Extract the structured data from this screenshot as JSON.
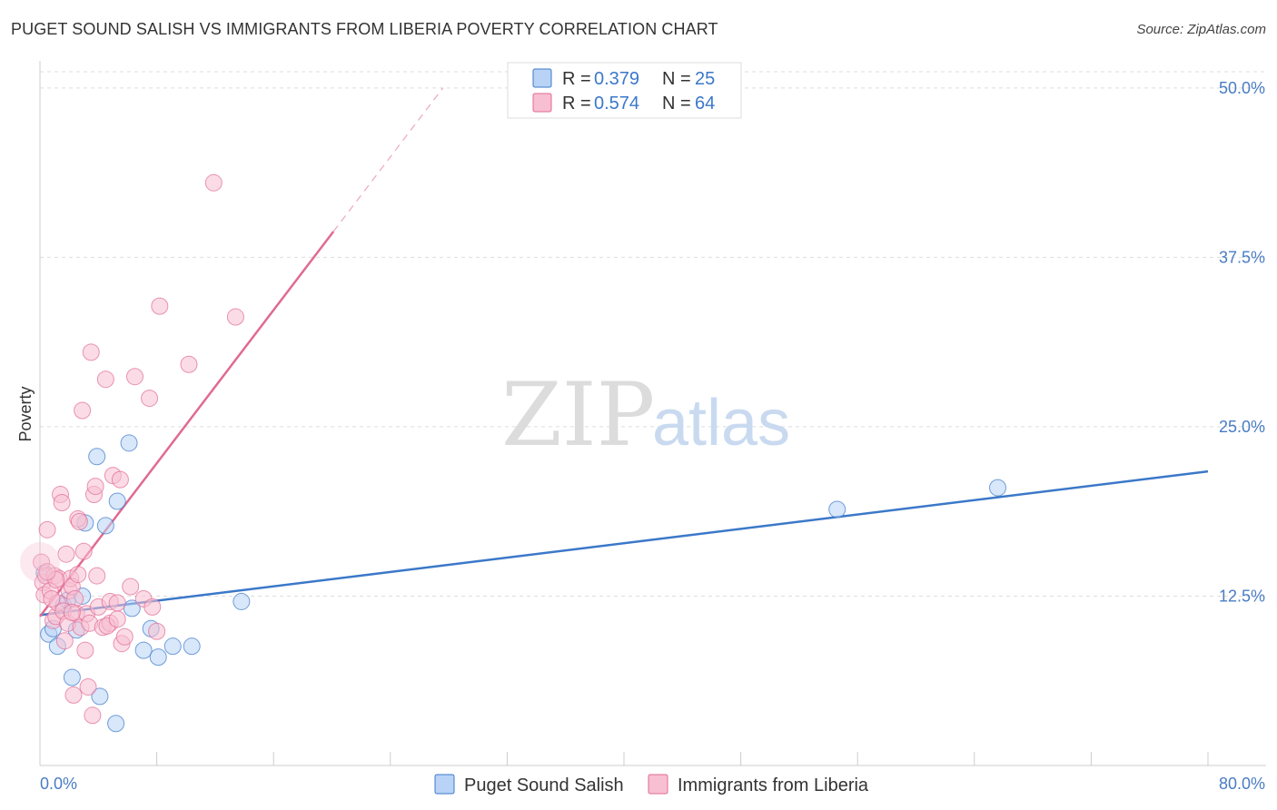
{
  "title": "PUGET SOUND SALISH VS IMMIGRANTS FROM LIBERIA POVERTY CORRELATION CHART",
  "source": "Source: ZipAtlas.com",
  "watermark": {
    "zip": "ZIP",
    "atlas": "atlas"
  },
  "colors": {
    "blue": "#3b78c9",
    "blue_fill": "#b8d3f5",
    "pink": "#e06a93",
    "pink_fill": "#f7bfd1",
    "tick": "#4a7cc4",
    "grid": "#dddddd"
  },
  "legend": {
    "r_label": "R =",
    "n_label": "N =",
    "series": [
      {
        "r": "0.379",
        "n": "25"
      },
      {
        "r": "0.574",
        "n": "64"
      }
    ]
  },
  "chart_data": {
    "type": "scatter",
    "title": "PUGET SOUND SALISH VS IMMIGRANTS FROM LIBERIA POVERTY CORRELATION CHART",
    "xlabel": "",
    "ylabel": "Poverty",
    "xlim": [
      0,
      80
    ],
    "ylim": [
      0,
      52
    ],
    "x_tick_labels": [
      "0.0%",
      "80.0%"
    ],
    "y_ticks": [
      12.5,
      25.0,
      37.5,
      50.0
    ],
    "y_tick_labels": [
      "12.5%",
      "25.0%",
      "37.5%",
      "50.0%"
    ],
    "grid": true,
    "legend_position": "bottom",
    "series": [
      {
        "name": "Puget Sound Salish",
        "color": "#3b78c9",
        "r": 0.379,
        "n": 25,
        "trend": {
          "x": [
            0,
            80
          ],
          "y": [
            11.1,
            21.7
          ],
          "solid_to_x": 80
        },
        "points": [
          [
            0.3,
            14.2
          ],
          [
            0.6,
            9.7
          ],
          [
            0.9,
            10.1
          ],
          [
            1.2,
            8.8
          ],
          [
            1.6,
            11.8
          ],
          [
            1.9,
            12.2
          ],
          [
            2.2,
            6.5
          ],
          [
            2.5,
            10.0
          ],
          [
            2.9,
            12.5
          ],
          [
            3.1,
            17.9
          ],
          [
            3.9,
            22.8
          ],
          [
            4.1,
            5.1
          ],
          [
            4.5,
            17.7
          ],
          [
            5.2,
            3.1
          ],
          [
            5.3,
            19.5
          ],
          [
            6.1,
            23.8
          ],
          [
            6.3,
            11.6
          ],
          [
            7.1,
            8.5
          ],
          [
            7.6,
            10.1
          ],
          [
            8.1,
            8.0
          ],
          [
            9.1,
            8.8
          ],
          [
            10.4,
            8.8
          ],
          [
            13.8,
            12.1
          ],
          [
            54.6,
            18.9
          ],
          [
            65.6,
            20.5
          ]
        ]
      },
      {
        "name": "Immigrants from Liberia",
        "color": "#e06a93",
        "r": 0.574,
        "n": 64,
        "trend": {
          "x": [
            0,
            27.6
          ],
          "y": [
            11.0,
            50.0
          ],
          "solid_to_x": 20.1
        },
        "points": [
          [
            0.1,
            15.0
          ],
          [
            0.2,
            13.5
          ],
          [
            0.3,
            12.6
          ],
          [
            0.4,
            14.0
          ],
          [
            0.5,
            17.4
          ],
          [
            0.7,
            12.9
          ],
          [
            0.9,
            10.7
          ],
          [
            1.0,
            14.0
          ],
          [
            1.1,
            11.0
          ],
          [
            1.2,
            12.0
          ],
          [
            1.3,
            13.8
          ],
          [
            1.4,
            20.0
          ],
          [
            1.5,
            19.4
          ],
          [
            1.6,
            11.4
          ],
          [
            1.7,
            9.2
          ],
          [
            1.8,
            15.6
          ],
          [
            1.9,
            10.5
          ],
          [
            2.0,
            12.9
          ],
          [
            2.1,
            13.8
          ],
          [
            2.2,
            13.2
          ],
          [
            2.3,
            5.2
          ],
          [
            2.4,
            12.3
          ],
          [
            2.5,
            11.2
          ],
          [
            2.6,
            14.1
          ],
          [
            2.6,
            18.2
          ],
          [
            2.7,
            18.0
          ],
          [
            2.8,
            10.2
          ],
          [
            2.9,
            26.2
          ],
          [
            3.0,
            15.8
          ],
          [
            3.1,
            8.5
          ],
          [
            3.2,
            11.2
          ],
          [
            3.3,
            5.8
          ],
          [
            3.4,
            10.5
          ],
          [
            3.5,
            30.5
          ],
          [
            3.6,
            3.7
          ],
          [
            3.7,
            20.0
          ],
          [
            3.8,
            20.6
          ],
          [
            3.9,
            14.0
          ],
          [
            4.0,
            11.7
          ],
          [
            4.3,
            10.2
          ],
          [
            4.5,
            28.5
          ],
          [
            4.8,
            10.5
          ],
          [
            4.6,
            10.3
          ],
          [
            4.8,
            12.1
          ],
          [
            5.0,
            21.4
          ],
          [
            5.3,
            12.0
          ],
          [
            5.3,
            10.8
          ],
          [
            5.5,
            21.1
          ],
          [
            5.6,
            9.0
          ],
          [
            5.8,
            9.5
          ],
          [
            6.2,
            13.2
          ],
          [
            6.5,
            28.7
          ],
          [
            7.1,
            12.3
          ],
          [
            7.5,
            27.1
          ],
          [
            7.7,
            11.7
          ],
          [
            8.0,
            9.9
          ],
          [
            8.2,
            33.9
          ],
          [
            10.2,
            29.6
          ],
          [
            11.9,
            43.0
          ],
          [
            13.4,
            33.1
          ],
          [
            0.8,
            12.3
          ],
          [
            1.1,
            13.7
          ],
          [
            2.2,
            11.3
          ],
          [
            0.5,
            14.3
          ]
        ]
      }
    ]
  }
}
